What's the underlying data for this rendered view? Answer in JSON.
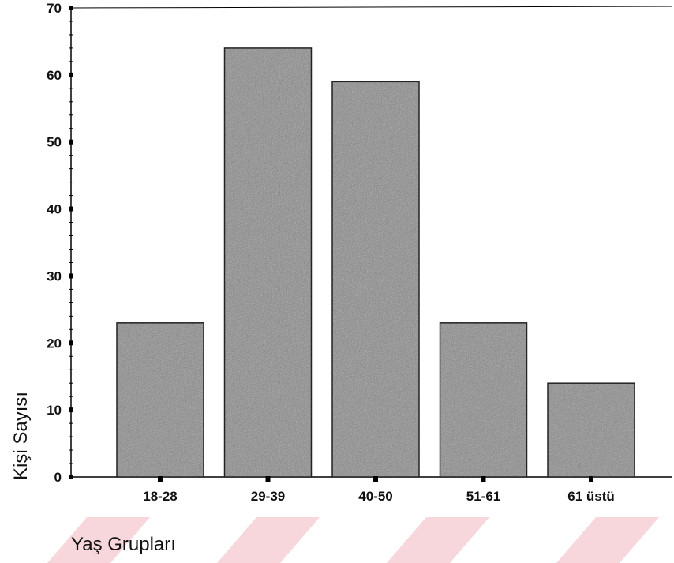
{
  "chart_data": {
    "type": "bar",
    "categories": [
      "18-28",
      "29-39",
      "40-50",
      "51-61",
      "61 üstü"
    ],
    "values": [
      23,
      64,
      59,
      23,
      14
    ],
    "xlabel": "Yaş Grupları",
    "ylabel": "Kişi Sayısı",
    "ylim": [
      0,
      70
    ],
    "yticks": [
      0,
      10,
      20,
      30,
      40,
      50,
      60,
      70
    ],
    "grid": false,
    "colors": {
      "bar_fill": "#8f8f8f",
      "bar_stroke": "#222222",
      "axis": "#000000",
      "watermark": "#f7d6dc"
    }
  }
}
